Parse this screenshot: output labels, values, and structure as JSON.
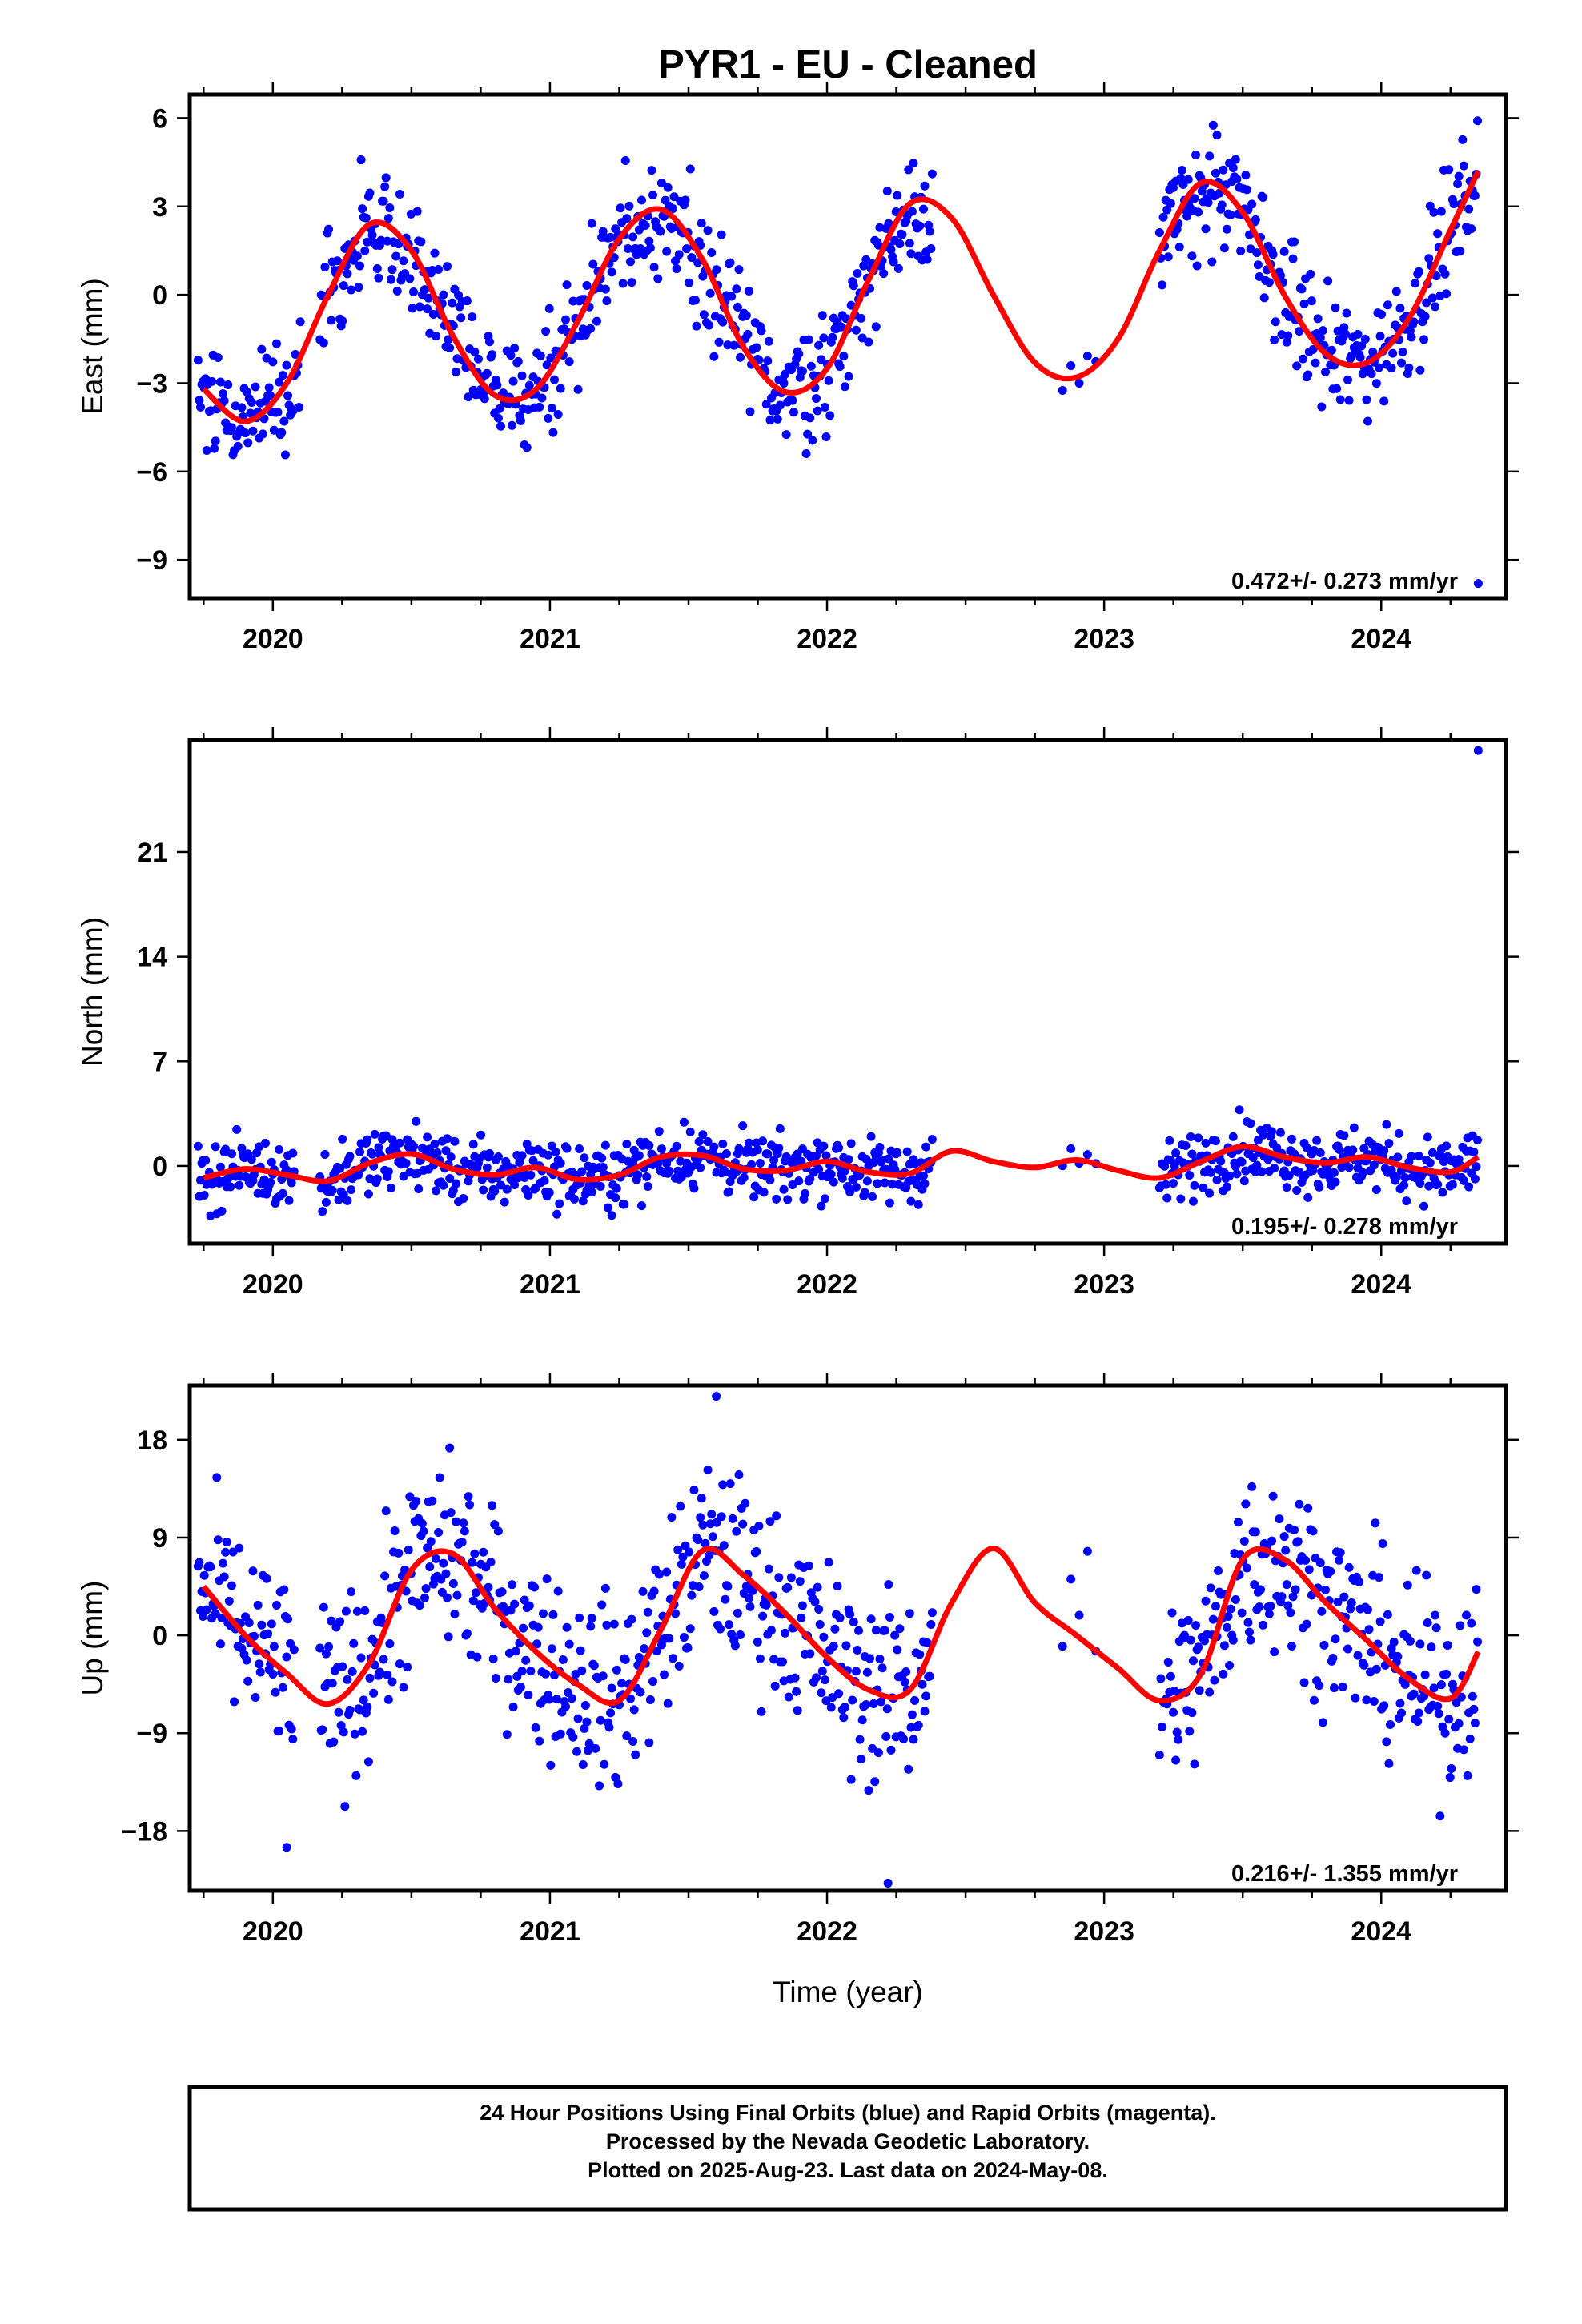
{
  "title": "PYR1  - EU - Cleaned",
  "xlabel": "Time (year)",
  "footer": [
    "24 Hour Positions Using Final Orbits (blue) and Rapid Orbits (magenta).",
    "Processed by the Nevada Geodetic Laboratory.",
    "Plotted on 2025-Aug-23. Last data on 2024-May-08."
  ],
  "colors": {
    "points": "#0000ff",
    "fit": "#ff0000",
    "frame": "#000000"
  },
  "chart_data": [
    {
      "type": "scatter",
      "ylabel": "East (mm)",
      "rate_text": "0.472+/- 0.273 mm/yr",
      "xlim": [
        2019.7,
        2024.45
      ],
      "ylim": [
        -10.3,
        6.8
      ],
      "x_ticks": [
        2020,
        2021,
        2022,
        2023,
        2024
      ],
      "y_ticks": [
        6,
        3,
        0,
        -3,
        -6,
        -9
      ],
      "y_tick_labels": [
        "6",
        "3",
        "0",
        "−3",
        "−6",
        "−9"
      ],
      "grid": false,
      "series": [
        {
          "kind": "points",
          "segments": [
            [
              2019.73,
              2020.1
            ],
            [
              2020.17,
              2022.38
            ],
            [
              2022.85,
              2022.97
            ],
            [
              2023.2,
              2024.35
            ]
          ],
          "points": [
            [
              2024.35,
              -9.8
            ]
          ]
        },
        {
          "kind": "fit",
          "x": [
            2019.75,
            2019.9,
            2020.05,
            2020.2,
            2020.35,
            2020.5,
            2020.65,
            2020.8,
            2020.95,
            2021.1,
            2021.25,
            2021.4,
            2021.55,
            2021.7,
            2021.85,
            2022.0,
            2022.15,
            2022.3,
            2022.45,
            2022.6,
            2022.75,
            2022.9,
            2023.05,
            2023.2,
            2023.35,
            2023.5,
            2023.65,
            2023.8,
            2023.95,
            2024.1,
            2024.25,
            2024.35
          ],
          "y": [
            -3.2,
            -4.3,
            -3.0,
            0.0,
            2.4,
            1.5,
            -1.4,
            -3.4,
            -3.2,
            -0.9,
            1.9,
            2.9,
            1.2,
            -1.8,
            -3.3,
            -2.5,
            0.5,
            3.1,
            2.6,
            0.0,
            -2.3,
            -2.8,
            -1.5,
            1.5,
            3.8,
            2.8,
            0.0,
            -2.0,
            -2.3,
            -0.8,
            2.2,
            4.2
          ]
        }
      ]
    },
    {
      "type": "scatter",
      "ylabel": "North (mm)",
      "rate_text": "0.195+/- 0.278 mm/yr",
      "xlim": [
        2019.7,
        2024.45
      ],
      "ylim": [
        -5.2,
        28.5
      ],
      "x_ticks": [
        2020,
        2021,
        2022,
        2023,
        2024
      ],
      "y_ticks": [
        21,
        14,
        7,
        0
      ],
      "y_tick_labels": [
        "21",
        "14",
        "7",
        "0"
      ],
      "grid": false,
      "series": [
        {
          "kind": "points",
          "segments": [
            [
              2019.73,
              2020.08
            ],
            [
              2020.17,
              2022.38
            ],
            [
              2022.85,
              2022.97
            ],
            [
              2023.2,
              2024.35
            ]
          ],
          "points": [
            [
              2024.35,
              27.8
            ]
          ]
        },
        {
          "kind": "fit",
          "x": [
            2019.75,
            2019.9,
            2020.05,
            2020.2,
            2020.35,
            2020.5,
            2020.65,
            2020.8,
            2020.95,
            2021.1,
            2021.25,
            2021.4,
            2021.55,
            2021.7,
            2021.85,
            2022.0,
            2022.15,
            2022.3,
            2022.45,
            2022.6,
            2022.75,
            2022.9,
            2023.05,
            2023.2,
            2023.35,
            2023.5,
            2023.65,
            2023.8,
            2023.95,
            2024.1,
            2024.25,
            2024.35
          ],
          "y": [
            -0.8,
            -0.2,
            -0.6,
            -1.0,
            0.2,
            0.8,
            -0.2,
            -0.6,
            -0.1,
            -0.9,
            -0.6,
            0.6,
            0.7,
            -0.2,
            -0.3,
            0.3,
            -0.4,
            -0.5,
            1.0,
            0.3,
            -0.1,
            0.4,
            -0.3,
            -0.8,
            0.3,
            1.3,
            0.6,
            0.2,
            0.6,
            -0.1,
            -0.4,
            0.6
          ]
        }
      ]
    },
    {
      "type": "scatter",
      "ylabel": "Up (mm)",
      "rate_text": "0.216+/- 1.355 mm/yr",
      "xlim": [
        2019.7,
        2024.45
      ],
      "ylim": [
        -23.5,
        23.0
      ],
      "x_ticks": [
        2020,
        2021,
        2022,
        2023,
        2024
      ],
      "y_ticks": [
        18,
        9,
        0,
        -9,
        -18
      ],
      "y_tick_labels": [
        "18",
        "9",
        "0",
        "−9",
        "−18"
      ],
      "grid": false,
      "series": [
        {
          "kind": "points",
          "segments": [
            [
              2019.73,
              2020.08
            ],
            [
              2020.17,
              2022.38
            ],
            [
              2022.85,
              2022.97
            ],
            [
              2023.2,
              2024.35
            ]
          ],
          "points": [
            [
              2021.6,
              22.0
            ],
            [
              2022.22,
              -22.8
            ],
            [
              2020.05,
              -19.5
            ]
          ]
        },
        {
          "kind": "fit",
          "x": [
            2019.75,
            2019.9,
            2020.05,
            2020.2,
            2020.35,
            2020.5,
            2020.65,
            2020.8,
            2020.95,
            2021.1,
            2021.25,
            2021.4,
            2021.55,
            2021.7,
            2021.85,
            2022.0,
            2022.15,
            2022.3,
            2022.45,
            2022.6,
            2022.75,
            2022.9,
            2023.05,
            2023.2,
            2023.35,
            2023.5,
            2023.65,
            2023.8,
            2023.95,
            2024.1,
            2024.25,
            2024.35
          ],
          "y": [
            4.5,
            0.0,
            -3.5,
            -6.3,
            -2.5,
            6.0,
            7.5,
            2.5,
            -1.5,
            -4.5,
            -6.0,
            0.5,
            7.8,
            5.5,
            2.0,
            -2.0,
            -5.0,
            -5.0,
            3.0,
            8.0,
            3.0,
            0.0,
            -3.0,
            -6.0,
            -3.5,
            7.0,
            7.0,
            3.0,
            -0.5,
            -4.0,
            -5.8,
            -1.5
          ]
        }
      ]
    }
  ]
}
